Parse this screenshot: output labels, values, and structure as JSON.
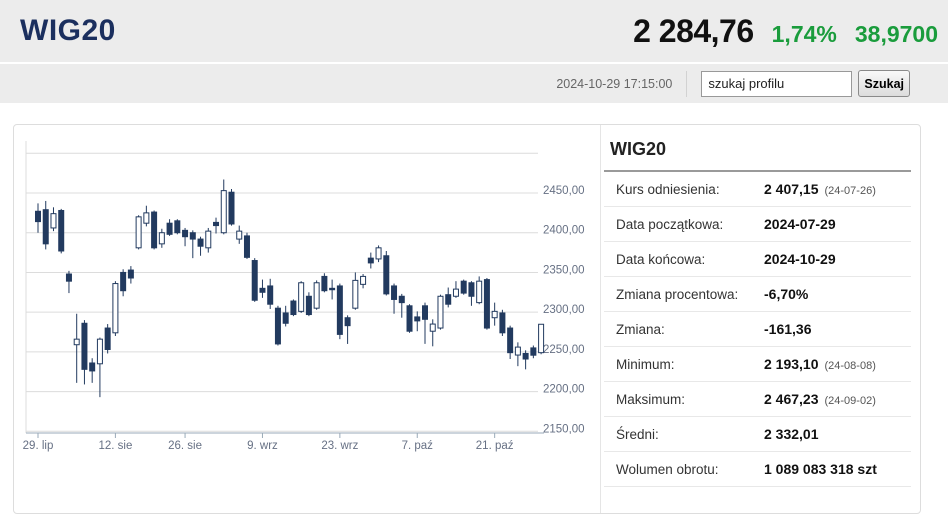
{
  "header": {
    "title": "WIG20",
    "price": "2 284,76",
    "change_percent": "1,74%",
    "change_value": "38,9700",
    "accent_green": "#1a9c3c",
    "brand_navy": "#1b2f5e"
  },
  "toolbar": {
    "timestamp": "2024-10-29 17:15:00",
    "search_placeholder": "szukaj profilu",
    "search_button_label": "Szukaj"
  },
  "info_panel": {
    "title": "WIG20",
    "rows": [
      {
        "label": "Kurs odniesienia:",
        "value": "2 407,15",
        "note": "(24-07-26)"
      },
      {
        "label": "Data początkowa:",
        "value": "2024-07-29",
        "note": ""
      },
      {
        "label": "Data końcowa:",
        "value": "2024-10-29",
        "note": ""
      },
      {
        "label": "Zmiana procentowa:",
        "value": "-6,70%",
        "note": ""
      },
      {
        "label": "Zmiana:",
        "value": "-161,36",
        "note": ""
      },
      {
        "label": "Minimum:",
        "value": "2 193,10",
        "note": "(24-08-08)"
      },
      {
        "label": "Maksimum:",
        "value": "2 467,23",
        "note": "(24-09-02)"
      },
      {
        "label": "Średni:",
        "value": "2 332,01",
        "note": ""
      },
      {
        "label": "Wolumen obrotu:",
        "value": "1 089 083 318 szt",
        "note": ""
      }
    ]
  },
  "chart_data": {
    "type": "candlestick",
    "title": "WIG20 daily candles 2024-07-29 to 2024-10-29",
    "ylim": [
      2140,
      2505
    ],
    "grid": true,
    "y_gridlines": [
      {
        "value": 2500,
        "label": null
      },
      {
        "value": 2450,
        "label": "2450,00"
      },
      {
        "value": 2400,
        "label": "2400,00"
      },
      {
        "value": 2350,
        "label": "2350,00"
      },
      {
        "value": 2300,
        "label": "2300,00"
      },
      {
        "value": 2250,
        "label": "2250,00"
      },
      {
        "value": 2200,
        "label": "2200,00"
      },
      {
        "value": 2150,
        "label": "2150,00"
      }
    ],
    "x_ticks": [
      {
        "index": 0,
        "label": "29. lip"
      },
      {
        "index": 10,
        "label": "12. sie"
      },
      {
        "index": 19,
        "label": "26. sie"
      },
      {
        "index": 29,
        "label": "9. wrz"
      },
      {
        "index": 39,
        "label": "23. wrz"
      },
      {
        "index": 49,
        "label": "7. paź"
      },
      {
        "index": 59,
        "label": "21. paź"
      }
    ],
    "ohlc": [
      [
        2427,
        2437,
        2400,
        2414
      ],
      [
        2429,
        2440,
        2379,
        2386
      ],
      [
        2406,
        2432,
        2402,
        2424
      ],
      [
        2428,
        2430,
        2374,
        2377
      ],
      [
        2348,
        2352,
        2324,
        2339
      ],
      [
        2259,
        2298,
        2211,
        2266
      ],
      [
        2286,
        2290,
        2209,
        2228
      ],
      [
        2236,
        2242,
        2211,
        2226
      ],
      [
        2235,
        2268,
        2193,
        2266
      ],
      [
        2280,
        2285,
        2248,
        2253
      ],
      [
        2274,
        2339,
        2270,
        2336
      ],
      [
        2350,
        2354,
        2320,
        2327
      ],
      [
        2353,
        2358,
        2336,
        2343
      ],
      [
        2381,
        2422,
        2379,
        2420
      ],
      [
        2412,
        2434,
        2408,
        2425
      ],
      [
        2426,
        2428,
        2379,
        2381
      ],
      [
        2386,
        2405,
        2381,
        2400
      ],
      [
        2412,
        2417,
        2396,
        2398
      ],
      [
        2415,
        2417,
        2398,
        2400
      ],
      [
        2403,
        2406,
        2383,
        2395
      ],
      [
        2400,
        2403,
        2368,
        2392
      ],
      [
        2392,
        2395,
        2371,
        2383
      ],
      [
        2381,
        2406,
        2375,
        2402
      ],
      [
        2413,
        2419,
        2399,
        2409
      ],
      [
        2400,
        2467,
        2398,
        2453
      ],
      [
        2451,
        2455,
        2409,
        2411
      ],
      [
        2392,
        2409,
        2386,
        2402
      ],
      [
        2396,
        2400,
        2367,
        2369
      ],
      [
        2365,
        2368,
        2313,
        2315
      ],
      [
        2330,
        2341,
        2318,
        2325
      ],
      [
        2333,
        2342,
        2304,
        2310
      ],
      [
        2305,
        2308,
        2258,
        2260
      ],
      [
        2299,
        2308,
        2282,
        2286
      ],
      [
        2314,
        2316,
        2295,
        2297
      ],
      [
        2301,
        2339,
        2299,
        2337
      ],
      [
        2320,
        2325,
        2295,
        2297
      ],
      [
        2305,
        2340,
        2303,
        2337
      ],
      [
        2345,
        2349,
        2325,
        2327
      ],
      [
        2330,
        2341,
        2316,
        2329
      ],
      [
        2333,
        2336,
        2266,
        2272
      ],
      [
        2293,
        2296,
        2260,
        2283
      ],
      [
        2305,
        2350,
        2303,
        2340
      ],
      [
        2335,
        2348,
        2330,
        2345
      ],
      [
        2368,
        2375,
        2355,
        2362
      ],
      [
        2367,
        2384,
        2363,
        2381
      ],
      [
        2371,
        2377,
        2321,
        2323
      ],
      [
        2333,
        2336,
        2298,
        2316
      ],
      [
        2320,
        2323,
        2293,
        2312
      ],
      [
        2308,
        2310,
        2274,
        2276
      ],
      [
        2294,
        2301,
        2276,
        2289
      ],
      [
        2308,
        2312,
        2260,
        2291
      ],
      [
        2276,
        2291,
        2257,
        2285
      ],
      [
        2280,
        2322,
        2278,
        2320
      ],
      [
        2322,
        2331,
        2306,
        2310
      ],
      [
        2320,
        2339,
        2318,
        2329
      ],
      [
        2339,
        2341,
        2322,
        2324
      ],
      [
        2337,
        2339,
        2308,
        2320
      ],
      [
        2312,
        2345,
        2310,
        2339
      ],
      [
        2341,
        2343,
        2278,
        2280
      ],
      [
        2293,
        2312,
        2283,
        2301
      ],
      [
        2299,
        2303,
        2270,
        2274
      ],
      [
        2280,
        2283,
        2241,
        2249
      ],
      [
        2246,
        2262,
        2232,
        2256
      ],
      [
        2248,
        2252,
        2228,
        2241
      ],
      [
        2255,
        2258,
        2242,
        2245.79
      ],
      [
        2249,
        2285,
        2247,
        2284.76
      ]
    ],
    "colors": {
      "up_fill": "#ffffff",
      "down_fill": "#223a5f",
      "outline": "#223a5f",
      "gridline": "#dcdcdc",
      "axis": "#9aaab8",
      "tick_label": "#667084"
    }
  }
}
